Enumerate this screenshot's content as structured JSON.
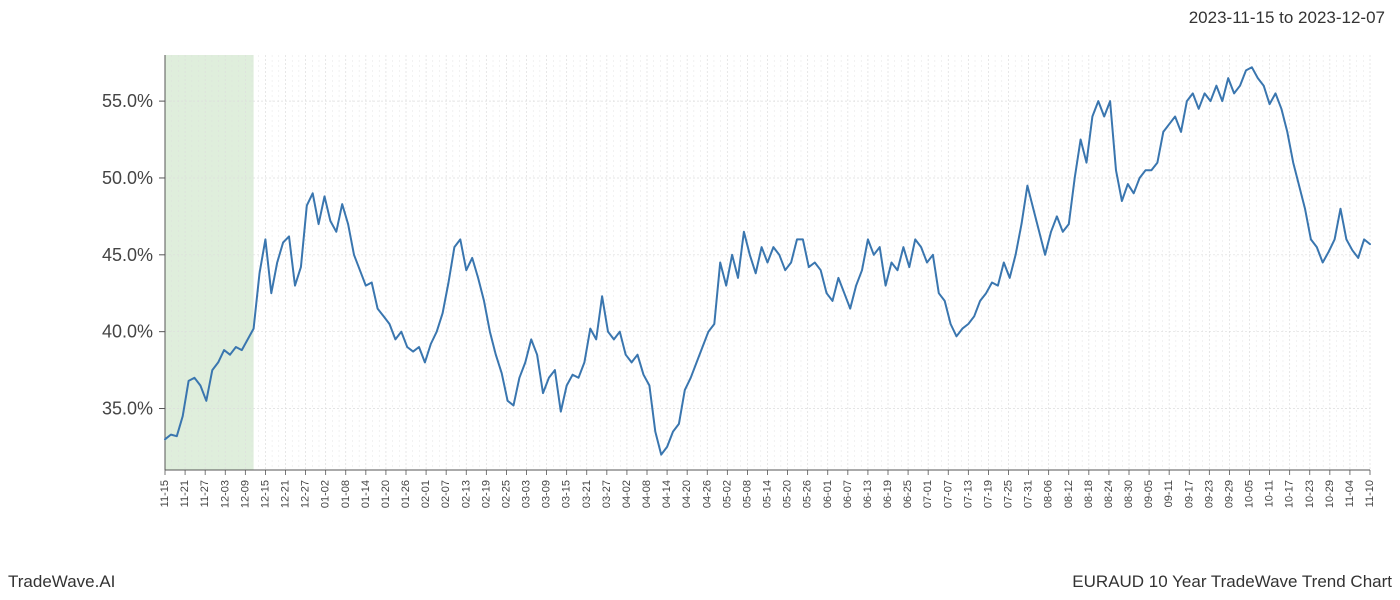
{
  "header": {
    "date_range": "2023-11-15 to 2023-12-07"
  },
  "footer": {
    "left": "TradeWave.AI",
    "right": "EURAUD 10 Year TradeWave Trend Chart"
  },
  "chart": {
    "type": "line",
    "background_color": "#ffffff",
    "line_color": "#3a76af",
    "line_width": 2,
    "grid_color": "#dddddd",
    "axis_color": "#555555",
    "highlight_band": {
      "fill": "#dfeedc",
      "start_index": 0,
      "end_index": 15
    },
    "y_axis": {
      "min": 31,
      "max": 58,
      "ticks": [
        35.0,
        40.0,
        45.0,
        50.0,
        55.0
      ],
      "tick_labels": [
        "35.0%",
        "40.0%",
        "45.0%",
        "50.0%",
        "55.0%"
      ],
      "label_fontsize": 18,
      "label_color": "#444444"
    },
    "x_axis": {
      "labels": [
        "11-15",
        "11-21",
        "11-27",
        "12-03",
        "12-09",
        "12-15",
        "12-21",
        "12-27",
        "01-02",
        "01-08",
        "01-14",
        "01-20",
        "01-26",
        "02-01",
        "02-07",
        "02-13",
        "02-19",
        "02-25",
        "03-03",
        "03-09",
        "03-15",
        "03-21",
        "03-27",
        "04-02",
        "04-08",
        "04-14",
        "04-20",
        "04-26",
        "05-02",
        "05-08",
        "05-14",
        "05-20",
        "05-26",
        "06-01",
        "06-07",
        "06-13",
        "06-19",
        "06-25",
        "07-01",
        "07-07",
        "07-13",
        "07-19",
        "07-25",
        "07-31",
        "08-06",
        "08-12",
        "08-18",
        "08-24",
        "08-30",
        "09-05",
        "09-11",
        "09-17",
        "09-23",
        "09-29",
        "10-05",
        "10-11",
        "10-17",
        "10-23",
        "10-29",
        "11-04",
        "11-10"
      ],
      "label_fontsize": 11,
      "label_color": "#444444",
      "label_rotation": -90
    },
    "series": {
      "values": [
        33.0,
        33.3,
        33.2,
        34.5,
        36.8,
        37.0,
        36.5,
        35.5,
        37.5,
        38.0,
        38.8,
        38.5,
        39.0,
        38.8,
        39.5,
        40.2,
        43.8,
        46.0,
        42.5,
        44.5,
        45.8,
        46.2,
        43.0,
        44.2,
        48.2,
        49.0,
        47.0,
        48.8,
        47.2,
        46.5,
        48.3,
        47.0,
        45.0,
        44.0,
        43.0,
        43.2,
        41.5,
        41.0,
        40.5,
        39.5,
        40.0,
        39.0,
        38.7,
        39.0,
        38.0,
        39.2,
        40.0,
        41.2,
        43.2,
        45.5,
        46.0,
        44.0,
        44.8,
        43.5,
        42.0,
        40.0,
        38.5,
        37.3,
        35.5,
        35.2,
        37.0,
        38.0,
        39.5,
        38.5,
        36.0,
        37.0,
        37.5,
        34.8,
        36.5,
        37.2,
        37.0,
        38.0,
        40.2,
        39.5,
        42.3,
        40.0,
        39.5,
        40.0,
        38.5,
        38.0,
        38.5,
        37.2,
        36.5,
        33.5,
        32.0,
        32.5,
        33.5,
        34.0,
        36.2,
        37.0,
        38.0,
        39.0,
        40.0,
        40.5,
        44.5,
        43.0,
        45.0,
        43.5,
        46.5,
        45.0,
        43.8,
        45.5,
        44.5,
        45.5,
        45.0,
        44.0,
        44.5,
        46.0,
        46.0,
        44.2,
        44.5,
        44.0,
        42.5,
        42.0,
        43.5,
        42.5,
        41.5,
        43.0,
        44.0,
        46.0,
        45.0,
        45.5,
        43.0,
        44.5,
        44.0,
        45.5,
        44.2,
        46.0,
        45.5,
        44.5,
        45.0,
        42.5,
        42.0,
        40.5,
        39.7,
        40.2,
        40.5,
        41.0,
        42.0,
        42.5,
        43.2,
        43.0,
        44.5,
        43.5,
        45.0,
        47.0,
        49.5,
        48.0,
        46.5,
        45.0,
        46.5,
        47.5,
        46.5,
        47.0,
        50.0,
        52.5,
        51.0,
        54.0,
        55.0,
        54.0,
        55.0,
        50.5,
        48.5,
        49.6,
        49.0,
        50.0,
        50.5,
        50.5,
        51.0,
        53.0,
        53.5,
        54.0,
        53.0,
        55.0,
        55.5,
        54.5,
        55.5,
        55.0,
        56.0,
        55.0,
        56.5,
        55.5,
        56.0,
        57.0,
        57.2,
        56.5,
        56.0,
        54.8,
        55.5,
        54.5,
        53.0,
        51.0,
        49.5,
        48.0,
        46.0,
        45.5,
        44.5,
        45.2,
        46.0,
        48.0,
        46.0,
        45.3,
        44.8,
        46.0,
        45.7
      ]
    }
  }
}
